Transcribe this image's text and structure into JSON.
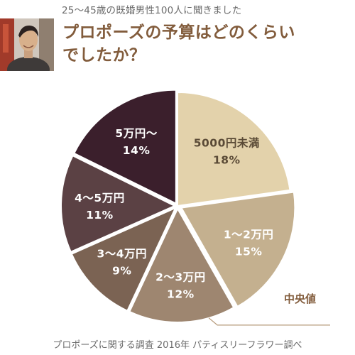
{
  "header": {
    "subtitle": "25～45歳の既婚男性100人に聞きました",
    "title_line1": "プロポーズの予算はどのくらい",
    "title_line2": "でしたか？"
  },
  "source": "プロポーズに関する調査 2016年 パティスリーフラワー調べ",
  "chart_data": {
    "type": "pie",
    "title": "プロポーズの予算はどのくらいでしたか？",
    "subtitle": "25～45歳の既婚男性100人に聞きました",
    "start": "12 o'clock",
    "direction": "clockwise",
    "slices": [
      {
        "name": "5000円未満",
        "value": 18,
        "pct": "18%",
        "color": "#e3d2ab",
        "text_color": "#5a4a36"
      },
      {
        "name": "1～2万円",
        "value": 15,
        "pct": "15%",
        "color": "#c4b08f",
        "text_color": "#ffffff"
      },
      {
        "name": "2～3万円",
        "value": 12,
        "pct": "12%",
        "color": "#9e8670",
        "text_color": "#ffffff"
      },
      {
        "name": "3～4万円",
        "value": 9,
        "pct": "9%",
        "color": "#7b6353",
        "text_color": "#ffffff"
      },
      {
        "name": "4～5万円",
        "value": 11,
        "pct": "11%",
        "color": "#5b4144",
        "text_color": "#ffffff"
      },
      {
        "name": "5万円～",
        "value": 14,
        "pct": "14%",
        "color": "#3b1f2c",
        "text_color": "#ffffff"
      }
    ],
    "annotation": {
      "text": "中央値",
      "slice": "2～3万円",
      "color": "#825c3c"
    },
    "legend": "none"
  }
}
